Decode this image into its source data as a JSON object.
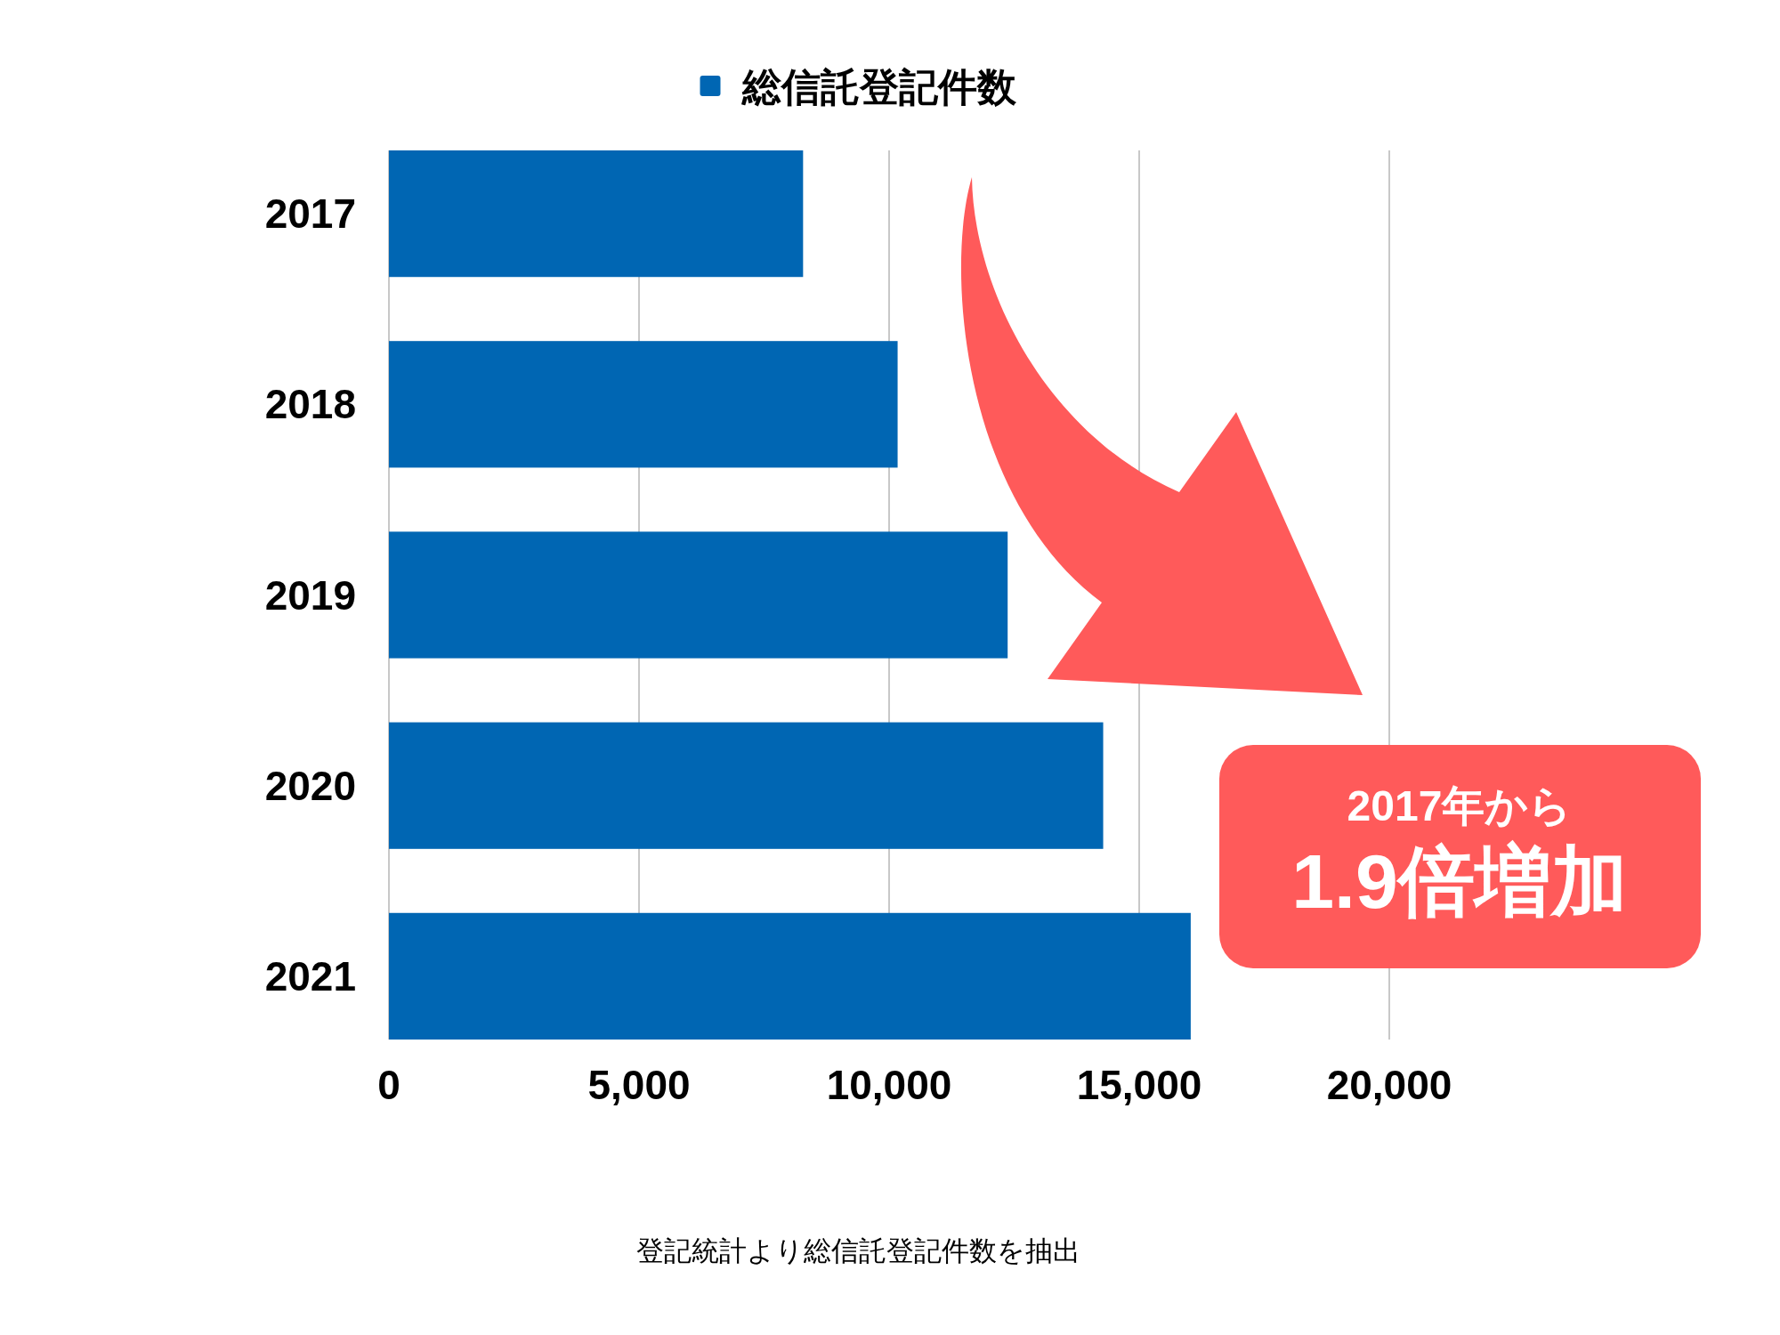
{
  "chart_data": {
    "type": "bar",
    "orientation": "horizontal",
    "categories": [
      "2017",
      "2018",
      "2019",
      "2020",
      "2021"
    ],
    "series": [
      {
        "name": "総信託登記件数",
        "color": "#0066b3",
        "values": [
          8280,
          10170,
          12370,
          14280,
          16030
        ]
      }
    ],
    "xlim": [
      0,
      20000
    ],
    "xticks": [
      0,
      {
        "value": 5000,
        "label": "5,000"
      },
      {
        "value": 10000,
        "label": "10,000"
      },
      {
        "value": 15000,
        "label": "15,000"
      },
      {
        "value": 20000,
        "label": "20,000"
      }
    ],
    "grid": "x",
    "legend": "top",
    "annotations": [
      "2017年から",
      "1.9倍増加",
      "登記統計より総信託登記件数を抽出"
    ]
  }
}
